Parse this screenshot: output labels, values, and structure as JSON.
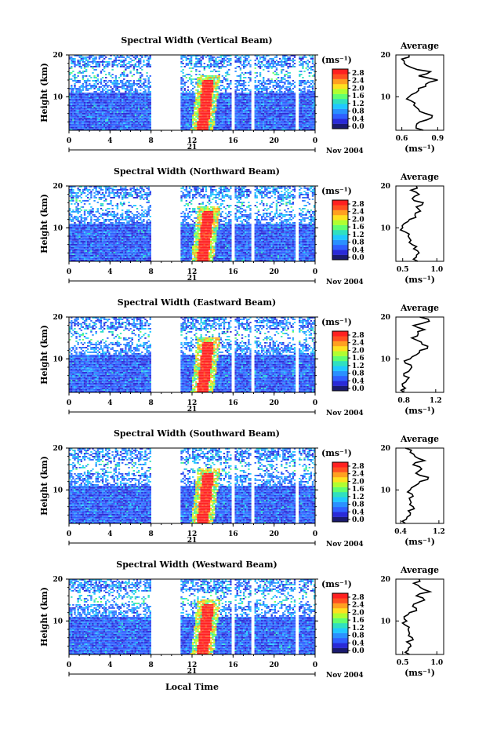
{
  "chart_data": {
    "type": "heatmap",
    "figure_xlabel": "Local Time",
    "date_label": "Nov 2004",
    "day_label": "21",
    "x_ticks": [
      "0",
      "4",
      "8",
      "12",
      "16",
      "20",
      "0"
    ],
    "y_ticks": [
      "20",
      "10"
    ],
    "ylabel": "Height (km)",
    "ylim": [
      2,
      20
    ],
    "xlim": [
      0,
      24
    ],
    "colorbar": {
      "unit": "(ms⁻¹)",
      "ticks": [
        "2.8",
        "2.4",
        "2.0",
        "1.6",
        "1.2",
        "0.8",
        "0.4",
        "0.0"
      ],
      "range": [
        0,
        3.0
      ],
      "colors": [
        "#1a1a6e",
        "#2a2ad8",
        "#2f5fff",
        "#2a90ff",
        "#20c8ff",
        "#30e0c0",
        "#60ff70",
        "#b0ff30",
        "#ffe020",
        "#ffa020",
        "#ff5020",
        "#ff2020"
      ]
    },
    "data_gaps_hours": [
      [
        8,
        10.8
      ],
      [
        15.8,
        16.1
      ],
      [
        17.8,
        18.1
      ],
      [
        22.1,
        22.4
      ]
    ],
    "panels": [
      {
        "title": "Spectral Width (Vertical Beam)",
        "average": {
          "title": "Average",
          "xlabel": "(ms⁻¹)",
          "x_ticks": [
            "0.6",
            "0.9"
          ],
          "xlim": [
            0.55,
            0.95
          ],
          "y_ticks": [
            "20",
            "10"
          ],
          "profile_km": [
            2,
            3,
            4,
            5,
            6,
            7,
            8,
            9,
            10,
            11,
            12,
            13,
            14,
            15,
            16,
            17,
            18,
            19,
            20
          ],
          "values": [
            0.78,
            0.72,
            0.75,
            0.85,
            0.8,
            0.74,
            0.7,
            0.68,
            0.66,
            0.72,
            0.74,
            0.8,
            0.9,
            0.74,
            0.84,
            0.68,
            0.62,
            0.6,
            0.66
          ]
        }
      },
      {
        "title": "Spectral Width (Northward Beam)",
        "average": {
          "title": "Average",
          "xlabel": "(ms⁻¹)",
          "x_ticks": [
            "0.5",
            "1.0"
          ],
          "xlim": [
            0.4,
            1.1
          ],
          "y_ticks": [
            "20",
            "10"
          ],
          "profile_km": [
            2,
            3,
            4,
            5,
            6,
            7,
            8,
            9,
            10,
            11,
            12,
            13,
            14,
            15,
            16,
            17,
            18,
            19,
            20
          ],
          "values": [
            0.72,
            0.7,
            0.74,
            0.66,
            0.64,
            0.62,
            0.58,
            0.54,
            0.5,
            0.52,
            0.6,
            0.68,
            0.76,
            0.7,
            0.8,
            0.64,
            0.74,
            0.62,
            0.7
          ]
        }
      },
      {
        "title": "Spectral Width (Eastward Beam)",
        "average": {
          "title": "Average",
          "xlabel": "(ms⁻¹)",
          "x_ticks": [
            "0.8",
            "1.2"
          ],
          "xlim": [
            0.7,
            1.3
          ],
          "y_ticks": [
            "20",
            "10"
          ],
          "profile_km": [
            2,
            3,
            4,
            5,
            6,
            7,
            8,
            9,
            10,
            11,
            12,
            13,
            14,
            15,
            16,
            17,
            18,
            19,
            20
          ],
          "values": [
            0.8,
            0.82,
            0.78,
            0.84,
            0.8,
            0.86,
            0.9,
            0.82,
            0.88,
            0.96,
            1.0,
            1.1,
            1.02,
            0.9,
            0.98,
            1.06,
            0.92,
            1.12,
            1.0
          ]
        }
      },
      {
        "title": "Spectral Width (Southward Beam)",
        "average": {
          "title": "Average",
          "xlabel": "(ms⁻¹)",
          "x_ticks": [
            "0.4",
            "1.2"
          ],
          "xlim": [
            0.3,
            1.3
          ],
          "y_ticks": [
            "20",
            "10"
          ],
          "profile_km": [
            2,
            3,
            4,
            5,
            6,
            7,
            8,
            9,
            10,
            11,
            12,
            13,
            14,
            15,
            16,
            17,
            18,
            19,
            20
          ],
          "values": [
            0.5,
            0.52,
            0.6,
            0.56,
            0.66,
            0.62,
            0.58,
            0.64,
            0.6,
            0.7,
            0.8,
            0.98,
            0.72,
            0.84,
            0.66,
            0.9,
            0.7,
            0.6,
            0.5
          ]
        }
      },
      {
        "title": "Spectral Width (Westward Beam)",
        "average": {
          "title": "Average",
          "xlabel": "(ms⁻¹)",
          "x_ticks": [
            "0.5",
            "1.0"
          ],
          "xlim": [
            0.4,
            1.1
          ],
          "y_ticks": [
            "20",
            "10"
          ],
          "profile_km": [
            2,
            3,
            4,
            5,
            6,
            7,
            8,
            9,
            10,
            11,
            12,
            13,
            14,
            15,
            16,
            17,
            18,
            19,
            20
          ],
          "values": [
            0.6,
            0.58,
            0.62,
            0.56,
            0.64,
            0.6,
            0.58,
            0.54,
            0.56,
            0.52,
            0.6,
            0.7,
            0.66,
            0.82,
            0.7,
            0.9,
            0.76,
            0.66,
            0.74
          ]
        }
      }
    ]
  }
}
